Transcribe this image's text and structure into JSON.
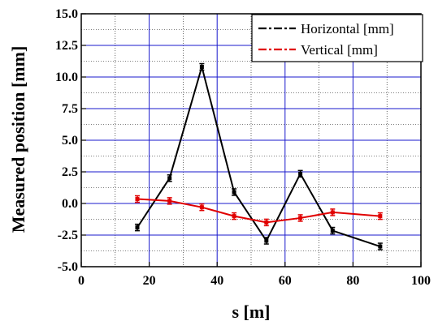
{
  "chart_data": {
    "type": "line",
    "xlabel": "s [m]",
    "ylabel": "Measured position [mm]",
    "xlim": [
      0,
      100
    ],
    "ylim": [
      -5.0,
      15.0
    ],
    "x_ticks": [
      "0",
      "20",
      "40",
      "60",
      "80",
      "100"
    ],
    "y_ticks": [
      "-5.0",
      "-2.5",
      "0.0",
      "2.5",
      "5.0",
      "7.5",
      "10.0",
      "12.5",
      "15.0"
    ],
    "grid": true,
    "legend_position": "top-right",
    "series": [
      {
        "name": "Horizontal [mm]",
        "color": "#000000",
        "x": [
          16.5,
          26,
          35.5,
          45,
          54.5,
          64.5,
          74,
          88
        ],
        "values": [
          -1.9,
          2.0,
          10.8,
          0.9,
          -2.95,
          2.35,
          -2.15,
          -3.4
        ]
      },
      {
        "name": "Vertical [mm]",
        "color": "#e00000",
        "x": [
          16.5,
          26,
          35.5,
          45,
          54.5,
          64.5,
          74,
          88
        ],
        "values": [
          0.35,
          0.2,
          -0.3,
          -1.0,
          -1.5,
          -1.15,
          -0.7,
          -1.0
        ]
      }
    ]
  }
}
